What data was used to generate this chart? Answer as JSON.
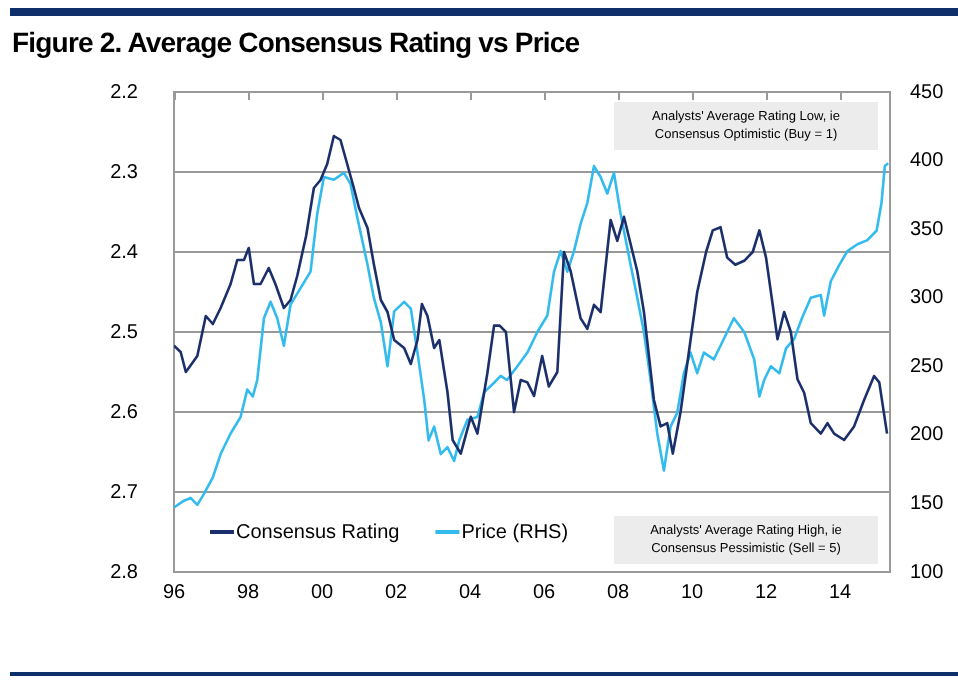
{
  "chart_data": {
    "type": "line",
    "title": "Figure 2. Average Consensus Rating vs Price",
    "annotations": [
      "Analysts' Average Rating Low, ie Consensus Optimistic (Buy = 1)",
      "Analysts' Average Rating High, ie Consensus Pessimistic (Sell = 5)"
    ],
    "xlim": [
      1996,
      2015.35
    ],
    "xticks": [
      {
        "value": 1996,
        "label": "96"
      },
      {
        "value": 1998,
        "label": "98"
      },
      {
        "value": 2000,
        "label": "00"
      },
      {
        "value": 2002,
        "label": "02"
      },
      {
        "value": 2004,
        "label": "04"
      },
      {
        "value": 2006,
        "label": "06"
      },
      {
        "value": 2008,
        "label": "08"
      },
      {
        "value": 2010,
        "label": "10"
      },
      {
        "value": 2012,
        "label": "12"
      },
      {
        "value": 2014,
        "label": "14"
      }
    ],
    "ylim": [
      2.8,
      2.2
    ],
    "yticks": [
      2.8,
      2.7,
      2.6,
      2.5,
      2.4,
      2.3,
      2.2
    ],
    "y2lim": [
      100,
      450
    ],
    "y2ticks": [
      100,
      150,
      200,
      250,
      300,
      350,
      400,
      450
    ],
    "grid": "y",
    "legend": "bottom",
    "line_style": "solid",
    "marker": "none",
    "series": [
      {
        "name": "Consensus Rating",
        "color": "#1b2f6b",
        "x": [
          1996.0,
          1996.18,
          1996.32,
          1996.63,
          1996.86,
          1997.05,
          1997.26,
          1997.53,
          1997.71,
          1997.89,
          1998.02,
          1998.16,
          1998.34,
          1998.56,
          1998.74,
          1998.97,
          1999.15,
          1999.33,
          1999.57,
          1999.78,
          1999.96,
          2000.14,
          2000.32,
          2000.5,
          2000.68,
          2000.86,
          2001.0,
          2001.23,
          2001.4,
          2001.59,
          2001.77,
          2001.95,
          2002.22,
          2002.4,
          2002.58,
          2002.7,
          2002.85,
          2003.03,
          2003.17,
          2003.39,
          2003.53,
          2003.75,
          2004.02,
          2004.2,
          2004.47,
          2004.65,
          2004.8,
          2004.97,
          2005.19,
          2005.37,
          2005.55,
          2005.73,
          2005.95,
          2006.13,
          2006.36,
          2006.54,
          2006.72,
          2006.99,
          2007.17,
          2007.35,
          2007.53,
          2007.8,
          2007.98,
          2008.16,
          2008.34,
          2008.52,
          2008.7,
          2008.97,
          2009.15,
          2009.33,
          2009.48,
          2009.69,
          2009.96,
          2010.14,
          2010.38,
          2010.56,
          2010.77,
          2010.95,
          2011.17,
          2011.41,
          2011.64,
          2011.82,
          2012.0,
          2012.18,
          2012.31,
          2012.49,
          2012.67,
          2012.85,
          2013.03,
          2013.21,
          2013.48,
          2013.66,
          2013.84,
          2014.11,
          2014.38,
          2014.65,
          2014.92,
          2015.06,
          2015.27
        ],
        "values": [
          2.517,
          2.525,
          2.55,
          2.53,
          2.48,
          2.49,
          2.47,
          2.44,
          2.41,
          2.41,
          2.395,
          2.44,
          2.44,
          2.42,
          2.44,
          2.47,
          2.46,
          2.43,
          2.38,
          2.32,
          2.31,
          2.29,
          2.255,
          2.26,
          2.29,
          2.32,
          2.345,
          2.37,
          2.415,
          2.46,
          2.475,
          2.51,
          2.52,
          2.54,
          2.51,
          2.465,
          2.48,
          2.52,
          2.51,
          2.575,
          2.635,
          2.652,
          2.606,
          2.627,
          2.551,
          2.492,
          2.492,
          2.5,
          2.6,
          2.56,
          2.563,
          2.58,
          2.53,
          2.568,
          2.55,
          2.4,
          2.424,
          2.483,
          2.496,
          2.466,
          2.475,
          2.36,
          2.386,
          2.356,
          2.39,
          2.424,
          2.475,
          2.585,
          2.618,
          2.614,
          2.652,
          2.6,
          2.51,
          2.45,
          2.4,
          2.373,
          2.369,
          2.407,
          2.416,
          2.411,
          2.4,
          2.373,
          2.407,
          2.466,
          2.509,
          2.475,
          2.5,
          2.559,
          2.576,
          2.614,
          2.627,
          2.614,
          2.627,
          2.635,
          2.618,
          2.585,
          2.555,
          2.563,
          2.627
        ]
      },
      {
        "name": "Price (RHS)",
        "color": "#33bbee",
        "axis": "y2",
        "x": [
          1996.0,
          1996.27,
          1996.45,
          1996.63,
          1996.81,
          1997.05,
          1997.26,
          1997.53,
          1997.8,
          1997.98,
          1998.13,
          1998.25,
          1998.43,
          1998.61,
          1998.79,
          1998.97,
          1999.15,
          1999.42,
          1999.69,
          1999.87,
          2000.05,
          2000.32,
          2000.59,
          2000.77,
          2000.95,
          2001.23,
          2001.4,
          2001.59,
          2001.77,
          2001.95,
          2002.22,
          2002.4,
          2002.58,
          2002.76,
          2002.88,
          2003.03,
          2003.21,
          2003.39,
          2003.57,
          2003.71,
          2003.93,
          2004.2,
          2004.38,
          2004.65,
          2004.83,
          2005.0,
          2005.28,
          2005.55,
          2005.82,
          2006.09,
          2006.27,
          2006.45,
          2006.63,
          2006.81,
          2006.99,
          2007.17,
          2007.35,
          2007.53,
          2007.71,
          2007.89,
          2008.07,
          2008.34,
          2008.52,
          2008.7,
          2008.88,
          2009.06,
          2009.24,
          2009.42,
          2009.6,
          2009.78,
          2009.96,
          2010.14,
          2010.32,
          2010.59,
          2010.77,
          2010.95,
          2011.13,
          2011.41,
          2011.68,
          2011.82,
          2011.95,
          2012.13,
          2012.36,
          2012.54,
          2012.76,
          2012.97,
          2013.21,
          2013.48,
          2013.57,
          2013.75,
          2013.98,
          2014.2,
          2014.47,
          2014.74,
          2014.99,
          2015.12,
          2015.21,
          2015.3
        ],
        "values": [
          147,
          152,
          154,
          149,
          157,
          169,
          186,
          201,
          213,
          233,
          228,
          240,
          285,
          297,
          285,
          265,
          295,
          307,
          319,
          361,
          388,
          386,
          391,
          383,
          359,
          324,
          300,
          282,
          250,
          290,
          297,
          292,
          260,
          226,
          196,
          206,
          186,
          191,
          181,
          196,
          211,
          213,
          231,
          238,
          243,
          240,
          250,
          260,
          275,
          287,
          319,
          334,
          319,
          334,
          354,
          369,
          396,
          388,
          376,
          391,
          361,
          324,
          300,
          275,
          240,
          201,
          174,
          206,
          216,
          245,
          260,
          245,
          260,
          255,
          265,
          275,
          285,
          275,
          255,
          228,
          240,
          250,
          245,
          263,
          270,
          285,
          300,
          302,
          287,
          312,
          324,
          334,
          339,
          342,
          349,
          369,
          396,
          398
        ]
      }
    ]
  }
}
